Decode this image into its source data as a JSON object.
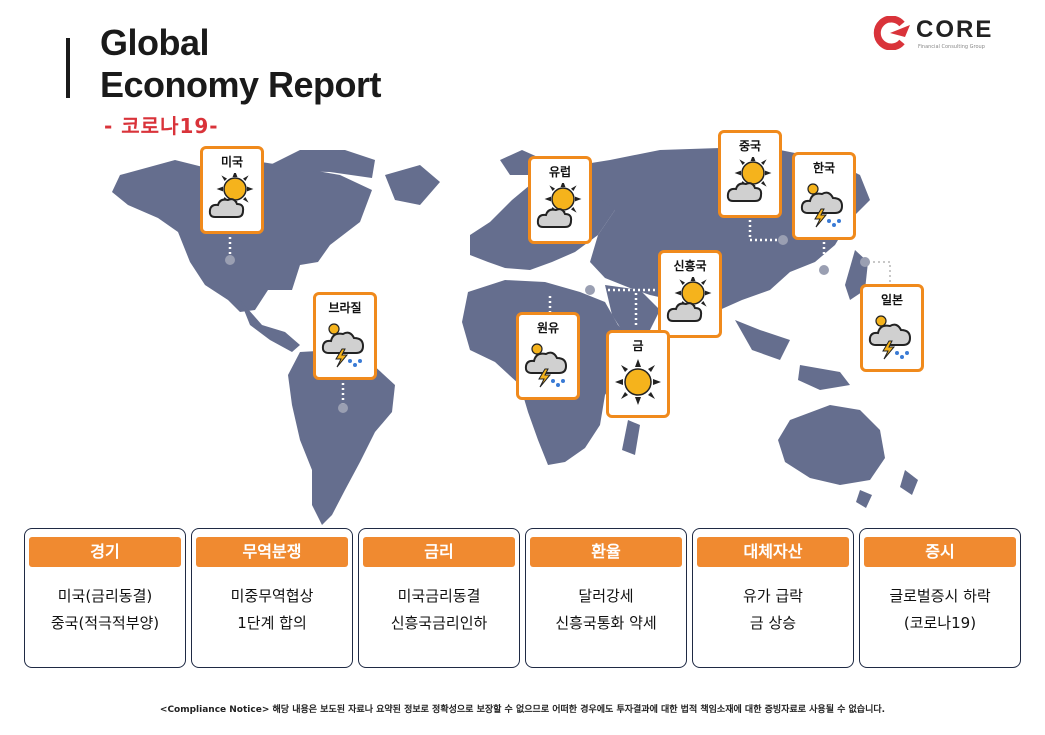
{
  "header": {
    "title_line1": "Global",
    "title_line2": "Economy Report",
    "subtitle": "- 코로나19-"
  },
  "logo": {
    "word": "CORE",
    "tagline": "Financial Consulting Group",
    "colors": {
      "mark": "#d9333a",
      "text": "#222222"
    }
  },
  "colors": {
    "map": "#656e8e",
    "accent": "#f08a1c",
    "header_fill": "#f08a30",
    "subtitle": "#d9333a",
    "border": "#1f2a44"
  },
  "regions": [
    {
      "label": "미국",
      "weather": "partly-sunny-icon"
    },
    {
      "label": "유럽",
      "weather": "partly-sunny-icon"
    },
    {
      "label": "중국",
      "weather": "partly-sunny-icon"
    },
    {
      "label": "한국",
      "weather": "thunderstorm-icon"
    },
    {
      "label": "신흥국",
      "weather": "partly-sunny-icon"
    },
    {
      "label": "브라질",
      "weather": "thunderstorm-icon"
    },
    {
      "label": "원유",
      "weather": "thunderstorm-icon"
    },
    {
      "label": "금",
      "weather": "sun-icon"
    },
    {
      "label": "일본",
      "weather": "thunderstorm-icon"
    }
  ],
  "panels": [
    {
      "header": "경기",
      "line1": "미국(금리동결)",
      "line2": "중국(적극적부양)"
    },
    {
      "header": "무역분쟁",
      "line1": "미중무역협상",
      "line2": "1단계 합의"
    },
    {
      "header": "금리",
      "line1": "미국금리동결",
      "line2": "신흥국금리인하"
    },
    {
      "header": "환율",
      "line1": "달러강세",
      "line2": "신흥국통화 약세"
    },
    {
      "header": "대체자산",
      "line1": "유가 급락",
      "line2": "금 상승"
    },
    {
      "header": "증시",
      "line1": "글로벌증시 하락",
      "line2": "(코로나19)"
    }
  ],
  "notice": "<Compliance Notice> 해당 내용은 보도된 자료나 요약된 정보로 정확성으로 보장할 수 없으므로 어떠한 경우에도 투자결과에 대한 법적 책임소재에 대한 증빙자료로 사용될 수 없습니다."
}
